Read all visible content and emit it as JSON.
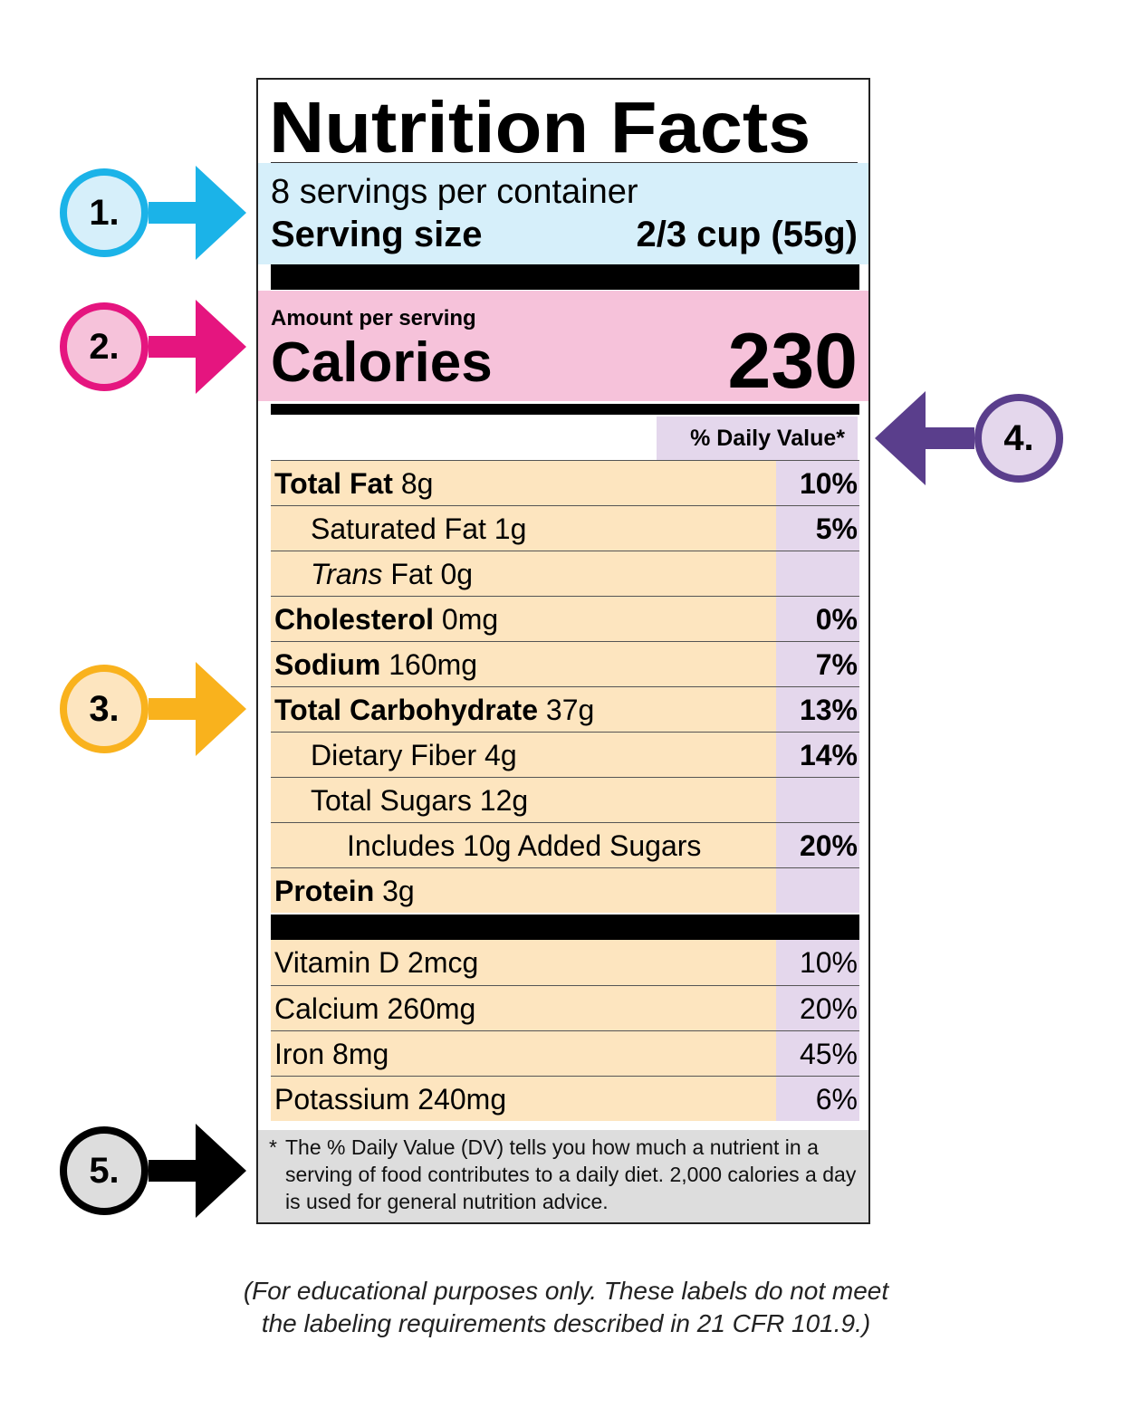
{
  "label": {
    "title": "Nutrition Facts",
    "servings_per_container": "8 servings per container",
    "serving_size_label": "Serving size",
    "serving_size_value": "2/3 cup (55g)",
    "amount_per_serving": "Amount per serving",
    "calories_label": "Calories",
    "calories_value": "230",
    "daily_value_header": "% Daily Value*",
    "nutrients": [
      {
        "name": "Total Fat",
        "amount": "8g",
        "dv": "10%",
        "bold": true,
        "indent": 0
      },
      {
        "name": "Saturated Fat",
        "amount": "1g",
        "dv": "5%",
        "bold": false,
        "indent": 1
      },
      {
        "name": "Trans",
        "name_rest": " Fat",
        "amount": "0g",
        "dv": "",
        "bold": false,
        "indent": 1,
        "italic_prefix": true
      },
      {
        "name": "Cholesterol",
        "amount": "0mg",
        "dv": "0%",
        "bold": true,
        "indent": 0
      },
      {
        "name": "Sodium",
        "amount": "160mg",
        "dv": "7%",
        "bold": true,
        "indent": 0
      },
      {
        "name": "Total Carbohydrate",
        "amount": "37g",
        "dv": "13%",
        "bold": true,
        "indent": 0
      },
      {
        "name": "Dietary Fiber",
        "amount": "4g",
        "dv": "14%",
        "bold": false,
        "indent": 1
      },
      {
        "name": "Total Sugars",
        "amount": "12g",
        "dv": "",
        "bold": false,
        "indent": 1
      },
      {
        "name": "Includes 10g Added Sugars",
        "amount": "",
        "dv": "20%",
        "bold": false,
        "indent": 2
      },
      {
        "name": "Protein",
        "amount": "3g",
        "dv": "",
        "bold": true,
        "indent": 0
      }
    ],
    "vitamins": [
      {
        "name": "Vitamin D 2mcg",
        "dv": "10%"
      },
      {
        "name": "Calcium 260mg",
        "dv": "20%"
      },
      {
        "name": "Iron 8mg",
        "dv": "45%"
      },
      {
        "name": "Potassium 240mg",
        "dv": "6%"
      }
    ],
    "footnote_star": "*",
    "footnote": "The % Daily Value (DV) tells you how much a nutrient in a serving of food contributes to a daily diet. 2,000 calories a day is used for general nutrition advice."
  },
  "callouts": [
    {
      "label": "1.",
      "color": "#1bb3e8",
      "fill": "#d6effa"
    },
    {
      "label": "2.",
      "color": "#e5157f",
      "fill": "#f6c2da"
    },
    {
      "label": "3.",
      "color": "#f9b21d",
      "fill": "#fde5bf"
    },
    {
      "label": "4.",
      "color": "#5a3e8c",
      "fill": "#e4d7ec"
    },
    {
      "label": "5.",
      "color": "#000000",
      "fill": "#dddddd"
    }
  ],
  "caption_line1": "(For educational purposes only. These labels do not meet",
  "caption_line2": "the labeling requirements described in 21 CFR 101.9.)"
}
